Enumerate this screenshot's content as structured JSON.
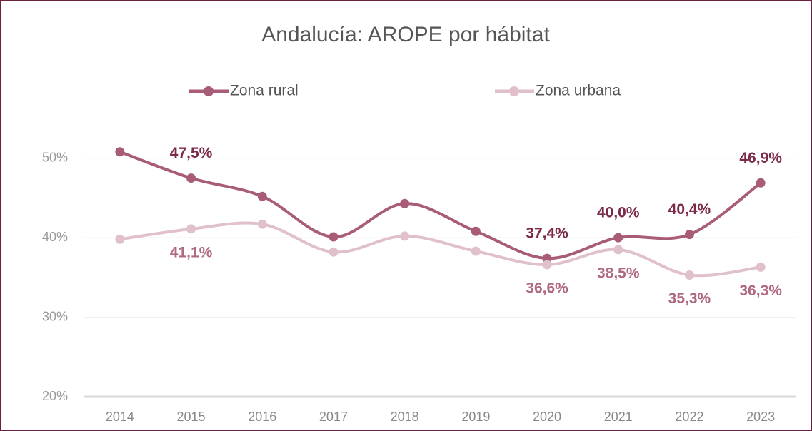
{
  "chart_data": {
    "type": "line",
    "title": "Andalucía: AROPE por hábitat",
    "categories": [
      "2014",
      "2015",
      "2016",
      "2017",
      "2018",
      "2019",
      "2020",
      "2021",
      "2022",
      "2023"
    ],
    "series": [
      {
        "name": "Zona rural",
        "color": "#a85c78",
        "label_color": "#7b2a4a",
        "label_side": "above",
        "values": [
          50.8,
          47.5,
          45.2,
          40.1,
          44.3,
          40.8,
          37.4,
          40.0,
          40.4,
          46.9
        ],
        "value_labels": [
          null,
          "47,5%",
          null,
          null,
          null,
          null,
          "37,4%",
          "40,0%",
          "40,4%",
          "46,9%"
        ]
      },
      {
        "name": "Zona urbana",
        "color": "#e0c0cb",
        "label_color": "#b06a80",
        "label_side": "below",
        "values": [
          39.8,
          41.1,
          41.7,
          38.2,
          40.2,
          38.3,
          36.6,
          38.5,
          35.3,
          36.3
        ],
        "value_labels": [
          null,
          "41,1%",
          null,
          null,
          null,
          null,
          "36,6%",
          "38,5%",
          "35,3%",
          "36,3%"
        ]
      }
    ],
    "ylim": [
      20,
      55
    ],
    "yticks": [
      {
        "value": 20,
        "label": "20%"
      },
      {
        "value": 30,
        "label": "30%"
      },
      {
        "value": 40,
        "label": "40%"
      },
      {
        "value": 50,
        "label": "50%"
      }
    ],
    "grid": true,
    "legend": "top"
  }
}
